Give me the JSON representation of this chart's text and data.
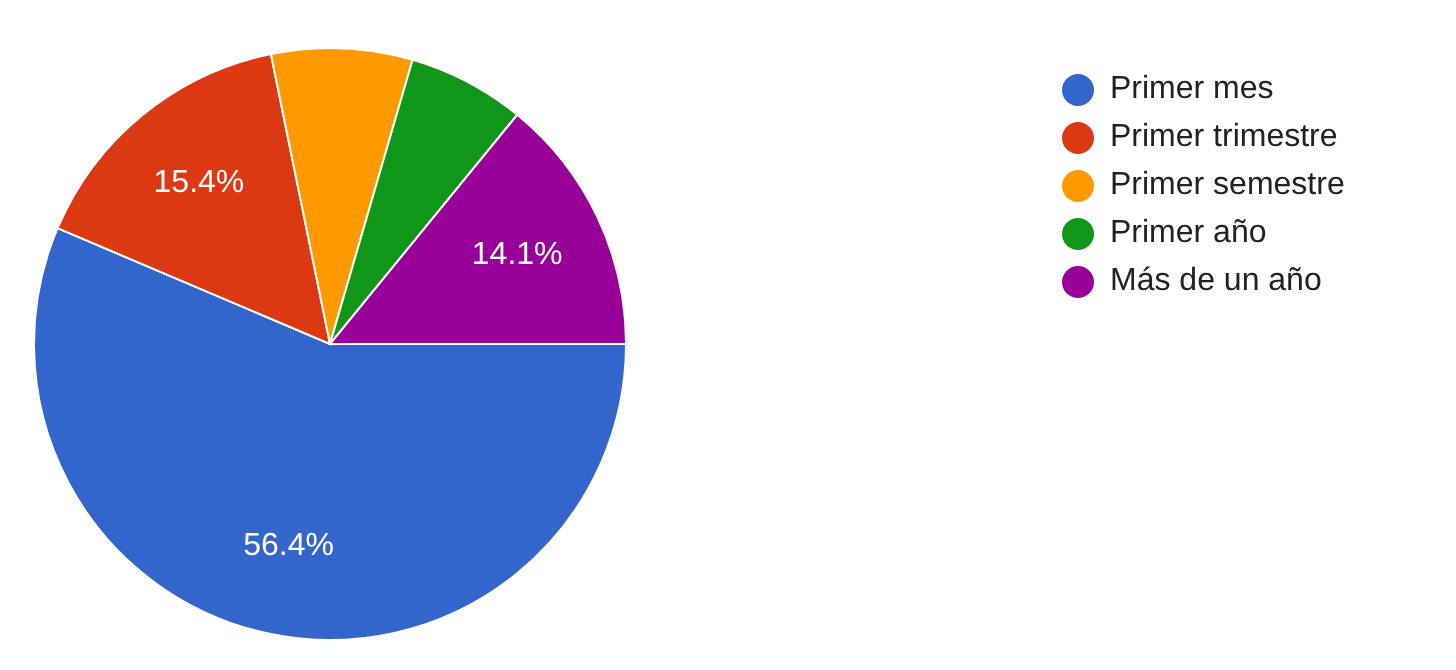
{
  "chart_data": {
    "type": "pie",
    "categories": [
      "Primer mes",
      "Primer trimestre",
      "Primer semestre",
      "Primer año",
      "Más de un año"
    ],
    "values": [
      56.4,
      15.4,
      7.7,
      6.4,
      14.1
    ],
    "colors": [
      "#3366cc",
      "#dc3912",
      "#ff9900",
      "#109618",
      "#990099"
    ],
    "value_labels": [
      "56.4%",
      "15.4%",
      null,
      null,
      "14.1%"
    ],
    "legend": "top right"
  }
}
